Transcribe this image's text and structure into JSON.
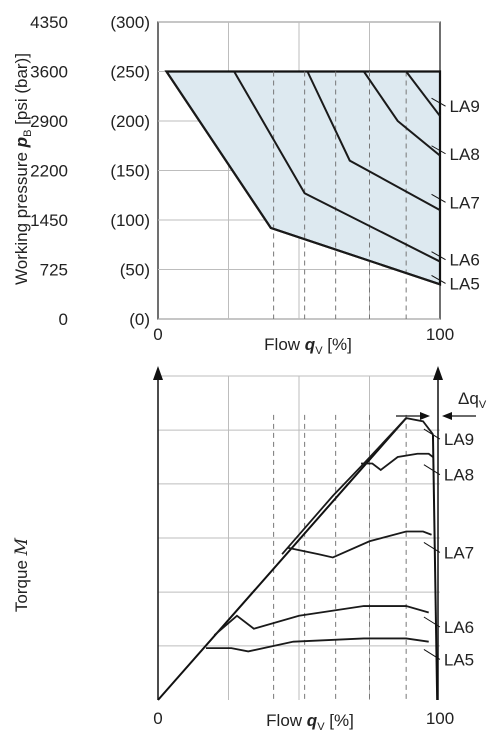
{
  "chart_data": [
    {
      "type": "line",
      "title": "",
      "ylabel_prefix": "Working pressure ",
      "ylabel_symbol": "p",
      "ylabel_sub": "B",
      "ylabel_suffix": " [psi (bar)]",
      "xlabel_prefix": "Flow ",
      "xlabel_symbol": "q",
      "xlabel_sub": "V",
      "xlabel_suffix": " [%]",
      "xlim": [
        0,
        100
      ],
      "ylim": [
        0,
        300
      ],
      "y_ticks": [
        {
          "value": 300,
          "psi": "4350",
          "bar": "(300)"
        },
        {
          "value": 250,
          "psi": "3600",
          "bar": "(250)"
        },
        {
          "value": 200,
          "psi": "2900",
          "bar": "(200)"
        },
        {
          "value": 150,
          "psi": "2200",
          "bar": "(150)"
        },
        {
          "value": 100,
          "psi": "1450",
          "bar": "(100)"
        },
        {
          "value": 50,
          "psi": "725",
          "bar": "(50)"
        },
        {
          "value": 0,
          "psi": "0",
          "bar": "(0)"
        }
      ],
      "x_tick_labels": [
        {
          "value": 0,
          "label": "0"
        },
        {
          "value": 100,
          "label": "100"
        }
      ],
      "grid": true,
      "envelope": [
        [
          3,
          250
        ],
        [
          40,
          92
        ],
        [
          100,
          35
        ],
        [
          100,
          250
        ]
      ],
      "series": [
        {
          "name": "LA9",
          "x": [
            88,
            100
          ],
          "y": [
            250,
            205
          ],
          "label_at": [
            97,
            223
          ]
        },
        {
          "name": "LA8",
          "x": [
            73,
            85,
            100
          ],
          "y": [
            250,
            200,
            165
          ],
          "label_at": [
            97,
            175
          ]
        },
        {
          "name": "LA7",
          "x": [
            53,
            68,
            100
          ],
          "y": [
            250,
            160,
            110
          ],
          "label_at": [
            97,
            126
          ]
        },
        {
          "name": "LA6",
          "x": [
            27,
            52,
            100
          ],
          "y": [
            250,
            127,
            58
          ],
          "label_at": [
            97,
            68
          ]
        },
        {
          "name": "LA5",
          "x": [
            3,
            40,
            100
          ],
          "y": [
            250,
            92,
            35
          ],
          "label_at": [
            97,
            44
          ]
        }
      ],
      "dashed_x": [
        41,
        52,
        63,
        75,
        88
      ],
      "fill_color": "#dde9f0",
      "line_color": "#1a1a1a"
    },
    {
      "type": "line",
      "ylabel_prefix": "Torque ",
      "ylabel_symbol": "M",
      "xlabel_prefix": "Flow ",
      "xlabel_symbol": "q",
      "xlabel_sub": "V",
      "xlabel_suffix": " [%]",
      "xlim": [
        0,
        100
      ],
      "ylim": [
        0,
        100
      ],
      "x_tick_labels": [
        {
          "value": 0,
          "label": "0"
        },
        {
          "value": 100,
          "label": "100"
        }
      ],
      "delta_label": "Δq",
      "delta_sub": "V",
      "grid": true,
      "diagonal": [
        [
          0,
          0
        ],
        [
          98,
          100
        ]
      ],
      "series": [
        {
          "name": "LA9",
          "x": [
            44,
            62,
            73,
            88,
            94,
            97.5
          ],
          "y": [
            45,
            63,
            73,
            87,
            86,
            82
          ],
          "label_at": [
            95,
            83
          ]
        },
        {
          "name": "LA8",
          "x": [
            72,
            76,
            79,
            85,
            92,
            96,
            97.5
          ],
          "y": [
            73,
            73,
            71,
            75,
            76,
            76,
            75
          ],
          "label_at": [
            95,
            72
          ]
        },
        {
          "name": "LA7",
          "x": [
            46,
            57,
            62,
            75,
            88,
            94,
            97
          ],
          "y": [
            47,
            45,
            44,
            49,
            52,
            52,
            51
          ],
          "label_at": [
            95,
            48
          ]
        },
        {
          "name": "LA6",
          "x": [
            20,
            28,
            34,
            50,
            73,
            88,
            96
          ],
          "y": [
            20,
            26,
            22,
            26,
            29,
            29,
            27
          ],
          "label_at": [
            95,
            25
          ]
        },
        {
          "name": "LA5",
          "x": [
            17,
            26,
            32,
            48,
            73,
            88,
            96
          ],
          "y": [
            16,
            16,
            15,
            18,
            19,
            19,
            18
          ],
          "label_at": [
            95,
            15
          ]
        }
      ],
      "dashed_x": [
        41,
        52,
        63,
        75,
        88
      ],
      "line_color": "#1a1a1a"
    }
  ]
}
